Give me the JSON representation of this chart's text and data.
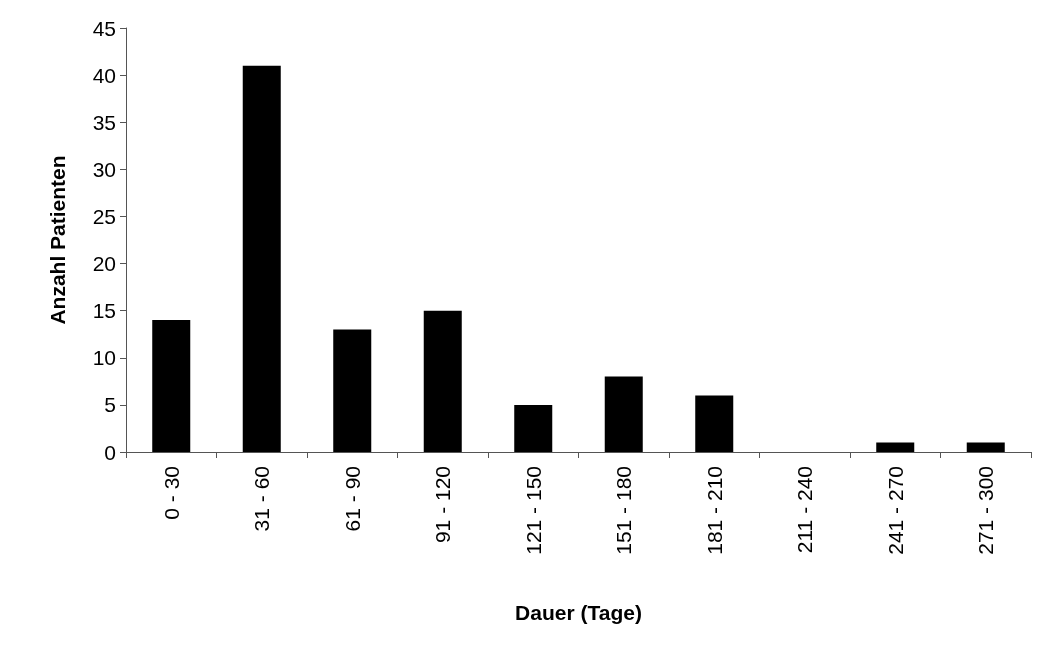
{
  "chart_data": {
    "type": "bar",
    "xlabel": "Dauer (Tage)",
    "ylabel": "Anzahl Patienten",
    "categories": [
      "0 - 30",
      "31 - 60",
      "61 - 90",
      "91 - 120",
      "121 - 150",
      "151 - 180",
      "181 - 210",
      "211 - 240",
      "241 - 270",
      "271 - 300"
    ],
    "values": [
      14,
      41,
      13,
      15,
      5,
      8,
      6,
      0,
      1,
      1
    ],
    "color": "#000000",
    "ylim": [
      0,
      45
    ],
    "yticks": [
      0,
      5,
      10,
      15,
      20,
      25,
      30,
      35,
      40,
      45
    ],
    "grid": false
  }
}
